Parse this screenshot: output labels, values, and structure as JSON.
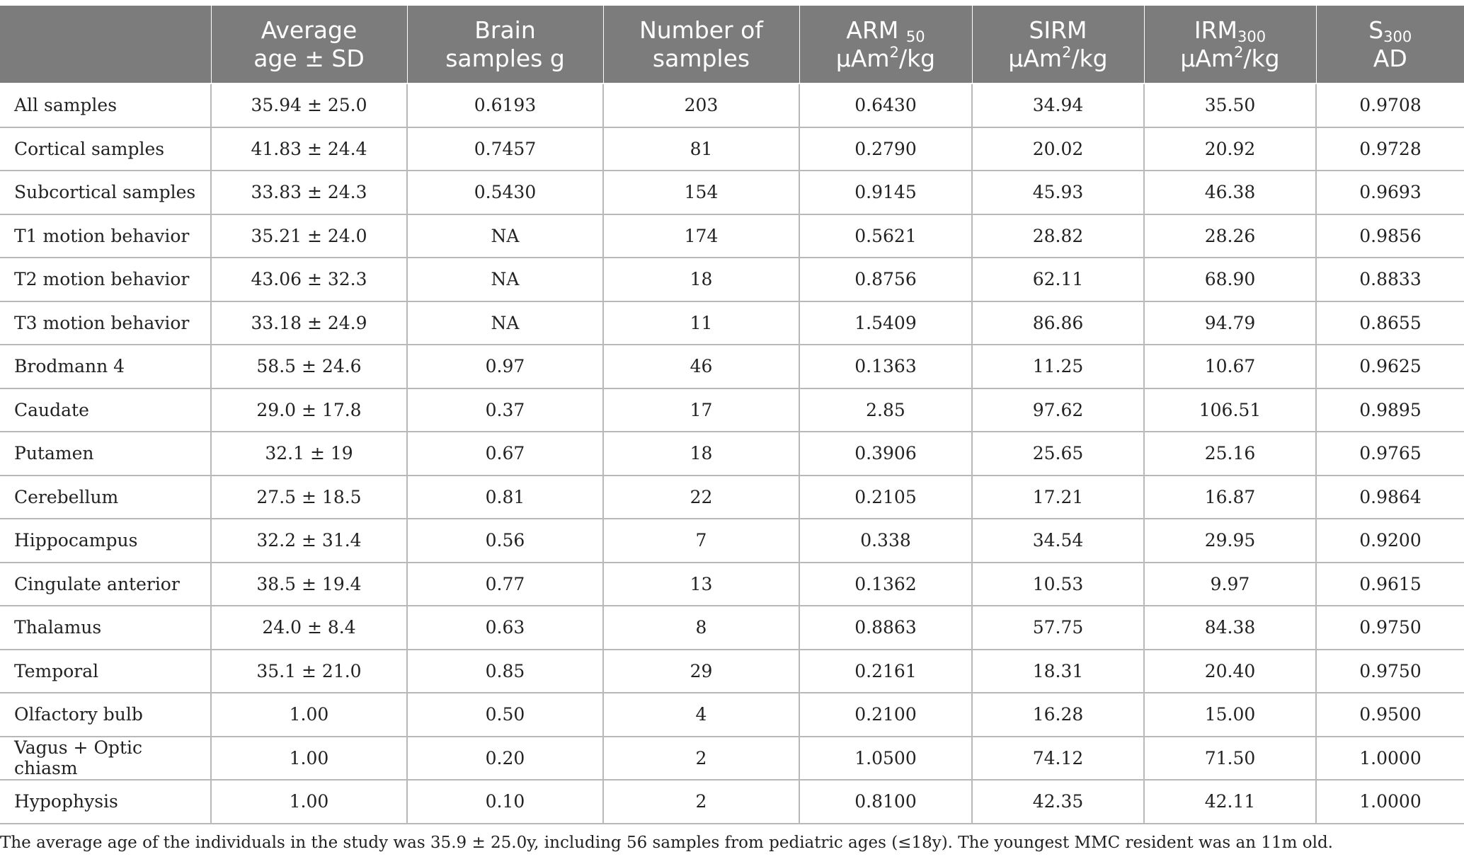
{
  "columns": [
    {
      "line1": "",
      "line2": "",
      "sub": "",
      "sup": ""
    },
    {
      "line1": "Average",
      "line2": "age ± SD"
    },
    {
      "line1": "Brain",
      "line2": "samples g"
    },
    {
      "line1": "Number of",
      "line2": "samples"
    },
    {
      "line1_main": "ARM ",
      "line1_sub": "50",
      "line2_pre": "μAm",
      "line2_sup": "2",
      "line2_post": "/kg"
    },
    {
      "line1": "SIRM",
      "line2_pre": "μAm",
      "line2_sup": "2",
      "line2_post": "/kg"
    },
    {
      "line1_main": "IRM",
      "line1_sub": "300",
      "line2_pre": "μAm",
      "line2_sup": "2",
      "line2_post": "/kg"
    },
    {
      "line1_main": "S",
      "line1_sub": "300",
      "line2": "AD"
    }
  ],
  "rows": [
    [
      "All samples",
      "35.94 ± 25.0",
      "0.6193",
      "203",
      "0.6430",
      "34.94",
      "35.50",
      "0.9708"
    ],
    [
      "Cortical samples",
      "41.83 ± 24.4",
      "0.7457",
      "81",
      "0.2790",
      "20.02",
      "20.92",
      "0.9728"
    ],
    [
      "Subcortical samples",
      "33.83 ± 24.3",
      "0.5430",
      "154",
      "0.9145",
      "45.93",
      "46.38",
      "0.9693"
    ],
    [
      "T1 motion behavior",
      "35.21 ± 24.0",
      "NA",
      "174",
      "0.5621",
      "28.82",
      "28.26",
      "0.9856"
    ],
    [
      "T2 motion behavior",
      "43.06 ± 32.3",
      "NA",
      "18",
      "0.8756",
      "62.11",
      "68.90",
      "0.8833"
    ],
    [
      "T3 motion behavior",
      "33.18 ± 24.9",
      "NA",
      "11",
      "1.5409",
      "86.86",
      "94.79",
      "0.8655"
    ],
    [
      "Brodmann 4",
      "58.5 ± 24.6",
      "0.97",
      "46",
      "0.1363",
      "11.25",
      "10.67",
      "0.9625"
    ],
    [
      "Caudate",
      "29.0 ± 17.8",
      "0.37",
      "17",
      "2.85",
      "97.62",
      "106.51",
      "0.9895"
    ],
    [
      "Putamen",
      "32.1 ± 19",
      "0.67",
      "18",
      "0.3906",
      "25.65",
      "25.16",
      "0.9765"
    ],
    [
      "Cerebellum",
      "27.5 ± 18.5",
      "0.81",
      "22",
      "0.2105",
      "17.21",
      "16.87",
      "0.9864"
    ],
    [
      "Hippocampus",
      "32.2 ± 31.4",
      "0.56",
      "7",
      "0.338",
      "34.54",
      "29.95",
      "0.9200"
    ],
    [
      "Cingulate anterior",
      "38.5 ± 19.4",
      "0.77",
      "13",
      "0.1362",
      "10.53",
      "9.97",
      "0.9615"
    ],
    [
      "Thalamus",
      "24.0 ± 8.4",
      "0.63",
      "8",
      "0.8863",
      "57.75",
      "84.38",
      "0.9750"
    ],
    [
      "Temporal",
      "35.1 ± 21.0",
      "0.85",
      "29",
      "0.2161",
      "18.31",
      "20.40",
      "0.9750"
    ],
    [
      "Olfactory bulb",
      "1.00",
      "0.50",
      "4",
      "0.2100",
      "16.28",
      "15.00",
      "0.9500"
    ],
    [
      "Vagus + Optic chiasm",
      "1.00",
      "0.20",
      "2",
      "1.0500",
      "74.12",
      "71.50",
      "1.0000"
    ],
    [
      "Hypophysis",
      "1.00",
      "0.10",
      "2",
      "0.8100",
      "42.35",
      "42.11",
      "1.0000"
    ]
  ],
  "footnote": "The average age of the individuals in the study was 35.9 ± 25.0y, including 56 samples from pediatric ages (≤18y). The youngest MMC resident was an 11m old.",
  "colors": {
    "header_bg": "#7c7c7c",
    "header_text": "#ffffff",
    "grid": "#b8b8b8"
  }
}
